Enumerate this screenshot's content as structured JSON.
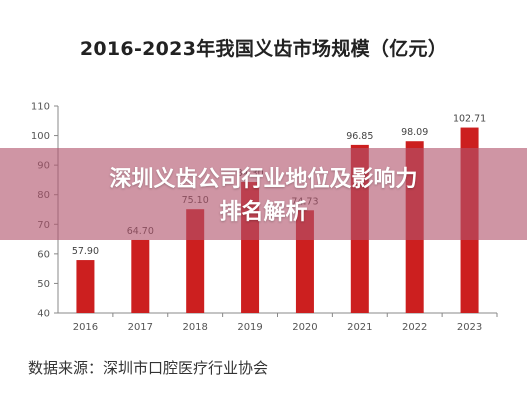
{
  "chart_data": {
    "type": "bar",
    "title": "2016-2023年我国义齿市场规模（亿元）",
    "categories": [
      "2016",
      "2017",
      "2018",
      "2019",
      "2020",
      "2021",
      "2022",
      "2023"
    ],
    "values": [
      57.9,
      64.7,
      75.1,
      84.3,
      74.73,
      96.85,
      98.09,
      102.71
    ],
    "value_labels": [
      "57.90",
      "64.70",
      "75.10",
      "84.30",
      "74.73",
      "96.85",
      "98.09",
      "102.71"
    ],
    "yticks": [
      "40",
      "50",
      "60",
      "70",
      "80",
      "90",
      "100",
      "110"
    ],
    "ylim": [
      40,
      110
    ],
    "bar_color": "#cc1f1f",
    "grid": false
  },
  "overlay": {
    "line1": "深圳义齿公司行业地位及影响力",
    "line2": "排名解析"
  },
  "source": "数据来源：深圳市口腔医疗行业协会"
}
